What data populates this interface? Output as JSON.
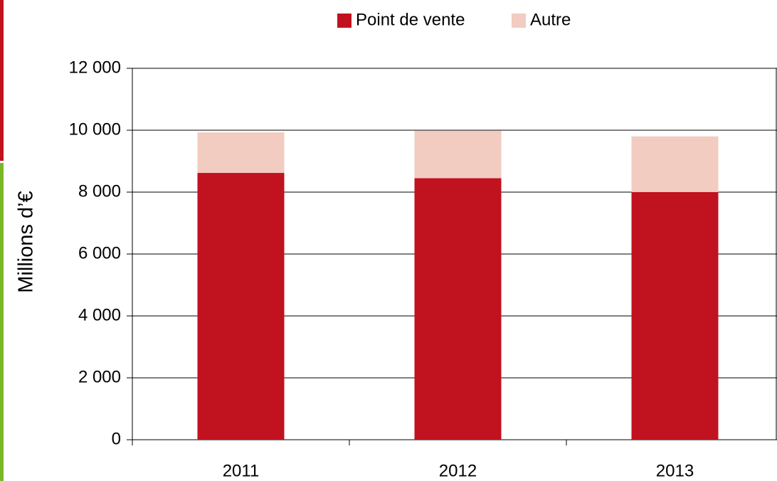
{
  "chart_data": {
    "type": "stacked_bar",
    "categories": [
      "2011",
      "2012",
      "2013"
    ],
    "series": [
      {
        "name": "Point de vente",
        "color": "#c1121f",
        "values": [
          8620,
          8450,
          8000
        ]
      },
      {
        "name": "Autre",
        "color": "#f2cbc1",
        "values": [
          1310,
          1530,
          1800
        ]
      }
    ],
    "ylabel": "Millions d’€",
    "ylim": [
      0,
      12000
    ],
    "yticks": [
      0,
      {
        "value": 2000,
        "label": "2 000"
      },
      {
        "value": 4000,
        "label": "4 000"
      },
      {
        "value": 6000,
        "label": "6 000"
      },
      {
        "value": 8000,
        "label": "8 000"
      },
      {
        "value": 10000,
        "label": "10 000"
      },
      {
        "value": 12000,
        "label": "12 000"
      }
    ],
    "grid": true,
    "legend": "top"
  }
}
